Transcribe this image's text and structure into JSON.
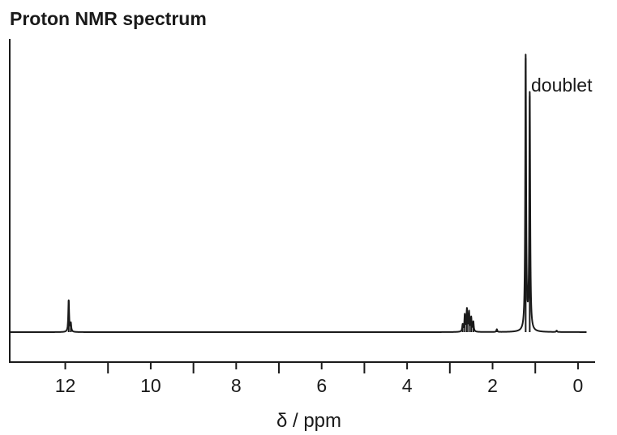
{
  "chart_data": {
    "type": "line",
    "title": "Proton NMR spectrum",
    "xlabel": "δ / ppm",
    "ylabel": "",
    "x_reversed": true,
    "xlim": [
      13.3,
      -0.4
    ],
    "ylim": [
      0,
      1
    ],
    "x_major_ticks": [
      12,
      10,
      8,
      6,
      4,
      2,
      0
    ],
    "x_minor_ticks": [
      11,
      9,
      7,
      5,
      3,
      1
    ],
    "grid": false,
    "legend": "none",
    "line_color": "#1a1a1a",
    "baseline_intensity": 0.0,
    "peaks": [
      {
        "shift": 11.92,
        "intensity": 0.115,
        "label": ""
      },
      {
        "shift": 11.87,
        "intensity": 0.03,
        "label": ""
      },
      {
        "shift": 2.7,
        "intensity": 0.025,
        "label": ""
      },
      {
        "shift": 2.65,
        "intensity": 0.06,
        "label": ""
      },
      {
        "shift": 2.6,
        "intensity": 0.08,
        "label": ""
      },
      {
        "shift": 2.55,
        "intensity": 0.07,
        "label": ""
      },
      {
        "shift": 2.5,
        "intensity": 0.05,
        "label": ""
      },
      {
        "shift": 2.45,
        "intensity": 0.035,
        "label": ""
      },
      {
        "shift": 1.9,
        "intensity": 0.01,
        "label": ""
      },
      {
        "shift": 1.225,
        "intensity": 1.0,
        "label": ""
      },
      {
        "shift": 1.13,
        "intensity": 0.862,
        "label": ""
      },
      {
        "shift": 0.5,
        "intensity": 0.005,
        "label": ""
      }
    ],
    "annotations": [
      {
        "text": "doublet",
        "near_shift": 1.18
      }
    ]
  }
}
